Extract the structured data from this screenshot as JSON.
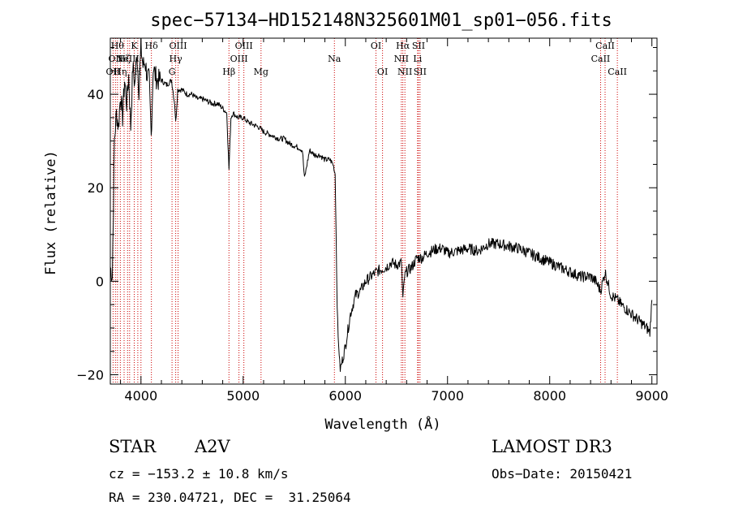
{
  "chart_data": {
    "type": "line",
    "title": "spec−57134−HD152148N325601M01_sp01−056.fits",
    "xlabel": "Wavelength (Å)",
    "ylabel": "Flux (relative)",
    "xlim": [
      3700,
      9050
    ],
    "ylim": [
      -22,
      52
    ],
    "x_ticks": [
      4000,
      5000,
      6000,
      7000,
      8000,
      9000
    ],
    "y_ticks": [
      -20,
      0,
      20,
      40
    ],
    "x_tick_labels": [
      "4000",
      "5000",
      "6000",
      "7000",
      "8000",
      "9000"
    ],
    "y_tick_labels": [
      "−20",
      "0",
      "20",
      "40"
    ],
    "grid": false,
    "legend": "none",
    "line_color": "#000000",
    "marker_color": "#cc0000",
    "series": [
      {
        "x": [
          3700,
          3720,
          3740,
          3760,
          3780,
          3800,
          3820,
          3840,
          3860,
          3880,
          3900,
          3920,
          3940,
          3960,
          3980,
          4000,
          4020,
          4040,
          4060,
          4080,
          4100,
          4120,
          4140,
          4160,
          4200,
          4250,
          4300,
          4330,
          4340,
          4360,
          4400,
          4450,
          4500,
          4550,
          4600,
          4650,
          4700,
          4750,
          4800,
          4840,
          4861,
          4880,
          4900,
          4950,
          5000,
          5050,
          5100,
          5150,
          5200,
          5250,
          5300,
          5350,
          5400,
          5450,
          5500,
          5550,
          5580,
          5600,
          5650,
          5700,
          5750,
          5800,
          5850,
          5880,
          5900,
          5910,
          5920,
          5930,
          5950,
          6000,
          6050,
          6100,
          6150,
          6200,
          6250,
          6300,
          6350,
          6400,
          6450,
          6500,
          6550,
          6563,
          6580,
          6600,
          6650,
          6700,
          6750,
          6800,
          6850,
          6900,
          6950,
          7000,
          7100,
          7200,
          7300,
          7400,
          7500,
          7600,
          7700,
          7800,
          7900,
          8000,
          8100,
          8200,
          8300,
          8400,
          8450,
          8498,
          8542,
          8600,
          8662,
          8700,
          8750,
          8800,
          8850,
          8900,
          8950,
          8980,
          9000
        ],
        "y": [
          3,
          1,
          30,
          36,
          33,
          40,
          35,
          43,
          38,
          44,
          33,
          46,
          42,
          49,
          41,
          50,
          46,
          47,
          44,
          43,
          31,
          46,
          44,
          43,
          43,
          42,
          43,
          38,
          34,
          41,
          41,
          40,
          40,
          39,
          39,
          38.5,
          38,
          38,
          37,
          36,
          24,
          35,
          36,
          35,
          35,
          34,
          33.5,
          33,
          32,
          31.5,
          31,
          30.5,
          30.5,
          29.5,
          29,
          28.5,
          28,
          22,
          28,
          27,
          27,
          26,
          26,
          25,
          23,
          10,
          -5,
          -12,
          -19,
          -14,
          -7,
          -3,
          -2,
          0,
          1,
          2,
          2.5,
          3,
          4,
          3.5,
          4,
          -4,
          1,
          2,
          3,
          5,
          5,
          6,
          6.5,
          7,
          7,
          6,
          6.5,
          7,
          6.5,
          8,
          8,
          7.5,
          7,
          6,
          5,
          4,
          3,
          2,
          1,
          1,
          0,
          -2,
          2,
          -3,
          -4,
          -5,
          -6,
          -7,
          -8,
          -9,
          -10,
          -11,
          -4
        ]
      }
    ],
    "line_markers": [
      {
        "wavelength": 3727,
        "label": "OII",
        "row": 2
      },
      {
        "wavelength": 3750,
        "label": "OII",
        "row": 1
      },
      {
        "wavelength": 3770,
        "label": "Hθ",
        "row": 0
      },
      {
        "wavelength": 3798,
        "label": "Hη",
        "row": 2
      },
      {
        "wavelength": 3835,
        "label": "Hζ",
        "row": 1
      },
      {
        "wavelength": 3869,
        "label": "NeIII",
        "row": 1
      },
      {
        "wavelength": 3889,
        "label": "",
        "row": 2
      },
      {
        "wavelength": 3934,
        "label": "K",
        "row": 0
      },
      {
        "wavelength": 3969,
        "label": "H",
        "row": 2
      },
      {
        "wavelength": 4000,
        "label": "",
        "row": 1
      },
      {
        "wavelength": 4102,
        "label": "Hδ",
        "row": 0
      },
      {
        "wavelength": 4304,
        "label": "G",
        "row": 2
      },
      {
        "wavelength": 4340,
        "label": "Hγ",
        "row": 1
      },
      {
        "wavelength": 4363,
        "label": "OIII",
        "row": 0
      },
      {
        "wavelength": 4861,
        "label": "Hβ",
        "row": 2
      },
      {
        "wavelength": 4959,
        "label": "OIII",
        "row": 1
      },
      {
        "wavelength": 5007,
        "label": "OIII",
        "row": 0
      },
      {
        "wavelength": 5175,
        "label": "Mg",
        "row": 2
      },
      {
        "wavelength": 5893,
        "label": "Na",
        "row": 1
      },
      {
        "wavelength": 6300,
        "label": "OI",
        "row": 0
      },
      {
        "wavelength": 6364,
        "label": "OI",
        "row": 2
      },
      {
        "wavelength": 6548,
        "label": "NII",
        "row": 1
      },
      {
        "wavelength": 6563,
        "label": "Hα",
        "row": 0
      },
      {
        "wavelength": 6583,
        "label": "NII",
        "row": 2
      },
      {
        "wavelength": 6707,
        "label": "Li",
        "row": 1
      },
      {
        "wavelength": 6716,
        "label": "SII",
        "row": 0
      },
      {
        "wavelength": 6731,
        "label": "SII",
        "row": 2
      },
      {
        "wavelength": 8498,
        "label": "CaII",
        "row": 1
      },
      {
        "wavelength": 8542,
        "label": "CaII",
        "row": 0
      },
      {
        "wavelength": 8662,
        "label": "CaII",
        "row": 2
      }
    ]
  },
  "info": {
    "class_label": "STAR",
    "subclass": "A2V",
    "survey": "LAMOST DR3",
    "cz": "cz = −153.2 ± 10.8 km/s",
    "obs_date": "Obs−Date: 20150421",
    "coords": "RA = 230.04721, DEC =  31.25064"
  }
}
